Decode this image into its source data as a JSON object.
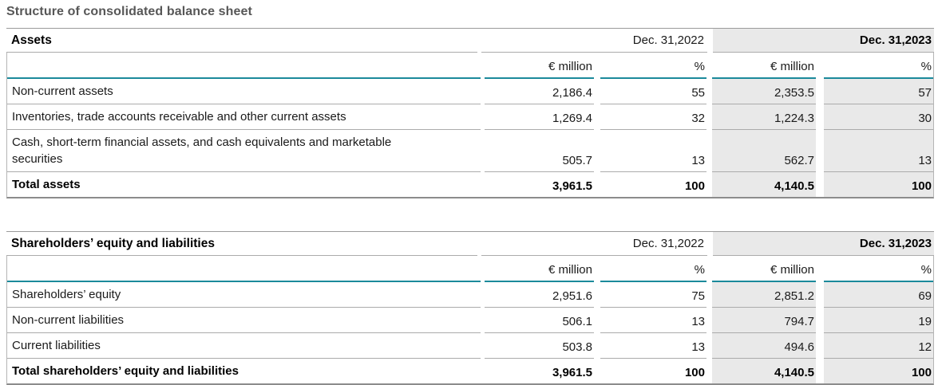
{
  "page_title": "Structure of consolidated balance sheet",
  "colors": {
    "accent_teal": "#1b8a9b",
    "shade_gray": "#e9e9e9"
  },
  "tables": [
    {
      "section_title": "Assets",
      "col_headers": [
        "Dec. 31,2022",
        "Dec. 31,2023"
      ],
      "sub_headers": [
        "€ million",
        "%",
        "€ million",
        "%"
      ],
      "rows": [
        {
          "label": "Non-current assets",
          "values": [
            "2,186.4",
            "55",
            "2,353.5",
            "57"
          ],
          "bold": false
        },
        {
          "label": "Inventories, trade accounts receivable and other current assets",
          "values": [
            "1,269.4",
            "32",
            "1,224.3",
            "30"
          ],
          "bold": false
        },
        {
          "label": "Cash, short-term financial assets, and cash equivalents and marketable securities",
          "values": [
            "505.7",
            "13",
            "562.7",
            "13"
          ],
          "bold": false
        },
        {
          "label": "Total assets",
          "values": [
            "3,961.5",
            "100",
            "4,140.5",
            "100"
          ],
          "bold": true
        }
      ]
    },
    {
      "section_title": "Shareholders’ equity and liabilities",
      "col_headers": [
        "Dec. 31,2022",
        "Dec. 31,2023"
      ],
      "sub_headers": [
        "€ million",
        "%",
        "€ million",
        "%"
      ],
      "rows": [
        {
          "label": "Shareholders’ equity",
          "values": [
            "2,951.6",
            "75",
            "2,851.2",
            "69"
          ],
          "bold": false
        },
        {
          "label": "Non-current liabilities",
          "values": [
            "506.1",
            "13",
            "794.7",
            "19"
          ],
          "bold": false
        },
        {
          "label": "Current liabilities",
          "values": [
            "503.8",
            "13",
            "494.6",
            "12"
          ],
          "bold": false
        },
        {
          "label": "Total shareholders’ equity and liabilities",
          "values": [
            "3,961.5",
            "100",
            "4,140.5",
            "100"
          ],
          "bold": true
        }
      ]
    }
  ]
}
